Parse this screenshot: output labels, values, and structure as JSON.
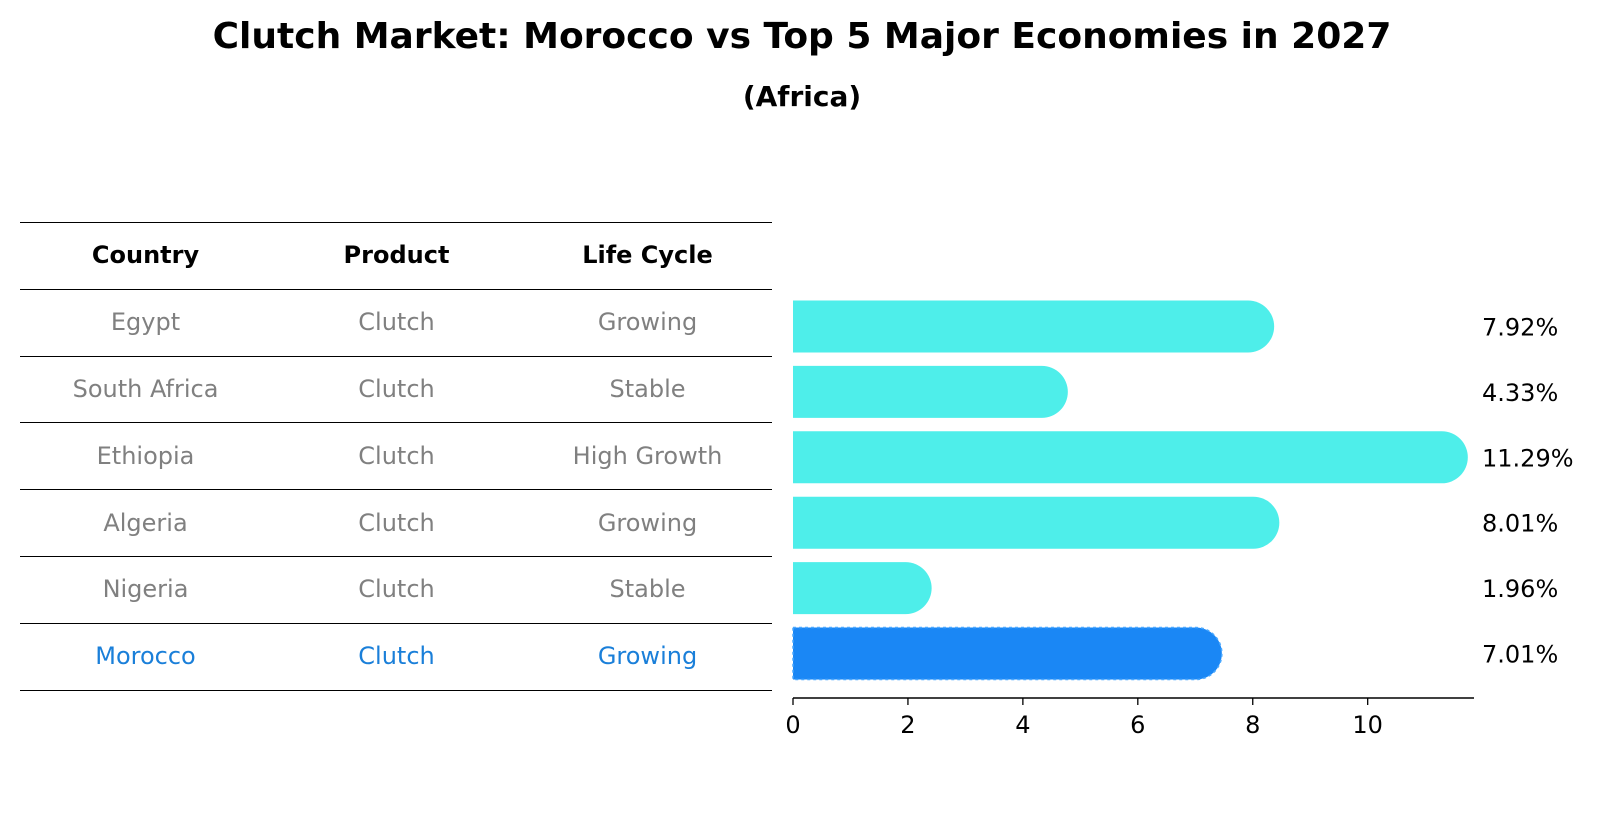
{
  "title": "Clutch Market: Morocco vs Top 5 Major Economies in 2027",
  "subtitle": "(Africa)",
  "table": {
    "headers": [
      "Country",
      "Product",
      "Life Cycle"
    ],
    "rows": [
      [
        "Egypt",
        "Clutch",
        "Growing"
      ],
      [
        "South Africa",
        "Clutch",
        "Stable"
      ],
      [
        "Ethiopia",
        "Clutch",
        "High Growth"
      ],
      [
        "Algeria",
        "Clutch",
        "Growing"
      ],
      [
        "Nigeria",
        "Clutch",
        "Stable"
      ],
      [
        "Morocco",
        "Clutch",
        "Growing"
      ]
    ],
    "highlight_row": 5,
    "row_text_color": "#808080",
    "highlight_text_color": "#1a7fd9"
  },
  "chart_data": {
    "type": "bar",
    "orientation": "horizontal",
    "categories": [
      "Egypt",
      "South Africa",
      "Ethiopia",
      "Algeria",
      "Nigeria",
      "Morocco"
    ],
    "values": [
      7.92,
      4.33,
      11.29,
      8.01,
      1.96,
      7.01
    ],
    "value_labels": [
      "7.92%",
      "4.33%",
      "11.29%",
      "8.01%",
      "1.96%",
      "7.01%"
    ],
    "xlim": [
      0,
      11.85
    ],
    "xticks": [
      0,
      2,
      4,
      6,
      8,
      10
    ],
    "xtick_labels": [
      "0",
      "2",
      "4",
      "6",
      "8",
      "10"
    ],
    "bar_color": "#4eeeea",
    "highlight_color": "#1a87f5",
    "highlight_index": 5,
    "grid": false,
    "legend": false
  }
}
